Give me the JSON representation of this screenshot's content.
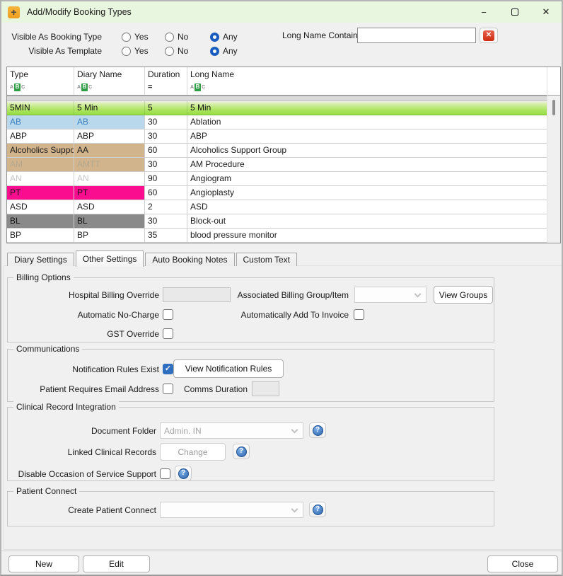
{
  "window": {
    "title": "Add/Modify Booking Types",
    "minimize_glyph": "−",
    "close_glyph": "✕"
  },
  "filter_panel": {
    "rows": [
      {
        "label": "Visible As Booking Type",
        "options": [
          "Yes",
          "No",
          "Any"
        ],
        "selected": "Any"
      },
      {
        "label": "Visible As Template",
        "options": [
          "Yes",
          "No",
          "Any"
        ],
        "selected": "Any"
      }
    ],
    "long_name": {
      "label": "Long Name Contains",
      "value": ""
    }
  },
  "grid": {
    "columns": [
      {
        "label": "Type",
        "filter": "abc"
      },
      {
        "label": "Diary Name",
        "filter": "abc"
      },
      {
        "label": "Duration",
        "filter": "equals",
        "equals_glyph": "="
      },
      {
        "label": "Long Name",
        "filter": "abc"
      }
    ],
    "abc_glyphs": {
      "a": "A",
      "b": "B",
      "c": "C"
    },
    "rows": [
      {
        "type": "5MIN",
        "diary": "5 Min",
        "duration": "5",
        "long_name": "5 Min",
        "selected": true
      },
      {
        "type": "AB",
        "diary": "AB",
        "duration": "30",
        "long_name": "Ablation",
        "cell_bg": "#b9d8eb",
        "cell_fg": "#3c7fc0"
      },
      {
        "type": "ABP",
        "diary": "ABP",
        "duration": "30",
        "long_name": "ABP"
      },
      {
        "type": "Alcoholics Support",
        "diary": "AA",
        "duration": "60",
        "long_name": "Alcoholics Support Group",
        "cell_bg": "#d2b48c",
        "cell_fg": "#1c1c1c"
      },
      {
        "type": "AM",
        "diary": "AMTT",
        "duration": "30",
        "long_name": "AM Procedure",
        "cell_bg": "#d2b48c",
        "cell_fg": "#b3a98e"
      },
      {
        "type": "AN",
        "diary": "AN",
        "duration": "90",
        "long_name": "Angiogram",
        "cell_fg": "#c6c6c6"
      },
      {
        "type": "PT",
        "diary": "PT",
        "duration": "60",
        "long_name": "Angioplasty",
        "cell_bg": "#fa0d8f",
        "cell_fg": "#141414"
      },
      {
        "type": "ASD",
        "diary": "ASD",
        "duration": "2",
        "long_name": "ASD"
      },
      {
        "type": "BL",
        "diary": "BL",
        "duration": "30",
        "long_name": "Block-out",
        "cell_bg": "#8a8a8a",
        "cell_fg": "#141414"
      },
      {
        "type": "BP",
        "diary": "BP",
        "duration": "35",
        "long_name": "blood pressure monitor"
      }
    ]
  },
  "tabs": {
    "items": [
      {
        "label": "Diary Settings",
        "active": false
      },
      {
        "label": "Other Settings",
        "active": true
      },
      {
        "label": "Auto Booking Notes",
        "active": false
      },
      {
        "label": "Custom Text",
        "active": false
      }
    ]
  },
  "billing": {
    "title": "Billing Options",
    "hospital_label": "Hospital Billing Override",
    "hospital_value": "",
    "associated_label": "Associated Billing Group/Item",
    "associated_value": "",
    "view_groups_label": "View Groups",
    "no_charge_label": "Automatic No-Charge",
    "no_charge_checked": false,
    "add_invoice_label": "Automatically Add To Invoice",
    "add_invoice_checked": false,
    "gst_label": "GST Override",
    "gst_checked": false
  },
  "communications": {
    "title": "Communications",
    "notification_label": "Notification Rules Exist",
    "notification_checked": true,
    "view_rules_label": "View Notification Rules",
    "email_label": "Patient Requires Email Address",
    "email_checked": false,
    "comms_label": "Comms Duration",
    "comms_value": ""
  },
  "clinical": {
    "title": "Clinical Record Integration",
    "doc_folder_label": "Document Folder",
    "doc_folder_value": "Admin. IN",
    "linked_label": "Linked Clinical Records",
    "change_label": "Change",
    "disable_label": "Disable Occasion of Service Support",
    "disable_checked": false
  },
  "patient_connect": {
    "title": "Patient Connect",
    "create_label": "Create Patient Connect",
    "create_value": ""
  },
  "footer": {
    "new_label": "New",
    "edit_label": "Edit",
    "close_label": "Close"
  },
  "colors": {
    "titlebar_green": "#e9f6df",
    "radio_blue": "#1a5dbe",
    "check_blue": "#2f6fc1",
    "selected_row_green": "#90dd3c",
    "help_blue": "#2a62ad",
    "clear_red": "#ce2c12",
    "app_icon_orange": "#ee9e1e"
  }
}
